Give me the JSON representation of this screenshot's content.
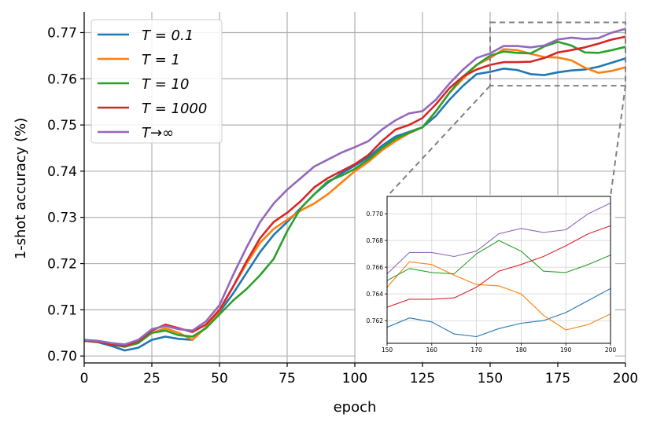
{
  "chart_data": {
    "type": "line",
    "xlabel": "epoch",
    "ylabel": "1-shot accuracy (%)",
    "xlim": [
      0,
      200
    ],
    "ylim": [
      0.6985,
      0.7745
    ],
    "xticks": [
      0,
      25,
      50,
      75,
      100,
      125,
      150,
      175,
      200
    ],
    "xtick_labels": [
      "0",
      "25",
      "50",
      "75",
      "100",
      "125",
      "150",
      "175",
      "200"
    ],
    "yticks": [
      0.7,
      0.71,
      0.72,
      0.73,
      0.74,
      0.75,
      0.76,
      0.77
    ],
    "ytick_labels": [
      "0.70",
      "0.71",
      "0.72",
      "0.73",
      "0.74",
      "0.75",
      "0.76",
      "0.77"
    ],
    "grid": true,
    "legend_position": "top-left",
    "x": [
      0,
      5,
      10,
      15,
      20,
      25,
      30,
      35,
      40,
      45,
      50,
      55,
      60,
      65,
      70,
      75,
      80,
      85,
      90,
      95,
      100,
      105,
      110,
      115,
      120,
      125,
      130,
      135,
      140,
      145,
      150,
      155,
      160,
      165,
      170,
      175,
      180,
      185,
      190,
      195,
      200
    ],
    "series": [
      {
        "name": "T = 0.1",
        "color": "#1f77b4",
        "values": [
          0.7033,
          0.703,
          0.7022,
          0.7012,
          0.7018,
          0.7035,
          0.7042,
          0.7037,
          0.7035,
          0.7062,
          0.7095,
          0.7135,
          0.718,
          0.7225,
          0.7262,
          0.729,
          0.732,
          0.735,
          0.7375,
          0.7395,
          0.7412,
          0.743,
          0.7455,
          0.7475,
          0.7485,
          0.7495,
          0.752,
          0.7555,
          0.7585,
          0.761,
          0.7615,
          0.7622,
          0.7619,
          0.761,
          0.7608,
          0.7614,
          0.7618,
          0.762,
          0.7626,
          0.7635,
          0.7644
        ]
      },
      {
        "name": "T = 1",
        "color": "#ff7f0e",
        "values": [
          0.7033,
          0.7031,
          0.7025,
          0.7022,
          0.703,
          0.705,
          0.706,
          0.705,
          0.7035,
          0.7062,
          0.7098,
          0.715,
          0.72,
          0.7245,
          0.7275,
          0.7295,
          0.7315,
          0.733,
          0.735,
          0.7375,
          0.74,
          0.742,
          0.7445,
          0.7465,
          0.7482,
          0.7495,
          0.753,
          0.757,
          0.76,
          0.763,
          0.7645,
          0.7664,
          0.7662,
          0.7654,
          0.7647,
          0.7646,
          0.764,
          0.7624,
          0.7613,
          0.7617,
          0.7625
        ]
      },
      {
        "name": "T = 10",
        "color": "#2ca02c",
        "values": [
          0.7033,
          0.7031,
          0.7025,
          0.702,
          0.7028,
          0.705,
          0.7055,
          0.7045,
          0.7042,
          0.706,
          0.709,
          0.712,
          0.7145,
          0.7175,
          0.721,
          0.727,
          0.732,
          0.735,
          0.7378,
          0.739,
          0.7405,
          0.7425,
          0.745,
          0.747,
          0.7483,
          0.7495,
          0.753,
          0.757,
          0.7605,
          0.763,
          0.765,
          0.7659,
          0.7656,
          0.7655,
          0.767,
          0.768,
          0.7672,
          0.7657,
          0.7656,
          0.7662,
          0.7669
        ]
      },
      {
        "name": "T = 1000",
        "color": "#d62728",
        "values": [
          0.7033,
          0.7031,
          0.7025,
          0.7022,
          0.7032,
          0.7055,
          0.7068,
          0.706,
          0.7052,
          0.7068,
          0.71,
          0.715,
          0.7205,
          0.7255,
          0.729,
          0.731,
          0.7335,
          0.7365,
          0.7385,
          0.74,
          0.7415,
          0.7435,
          0.7465,
          0.749,
          0.75,
          0.7515,
          0.7545,
          0.758,
          0.7605,
          0.762,
          0.763,
          0.7636,
          0.7636,
          0.7637,
          0.7645,
          0.7657,
          0.7662,
          0.7668,
          0.7676,
          0.7685,
          0.7691
        ]
      },
      {
        "name": "T→∞",
        "color": "#9467bd",
        "values": [
          0.7035,
          0.7033,
          0.7028,
          0.7025,
          0.7035,
          0.7058,
          0.7065,
          0.7058,
          0.7055,
          0.7075,
          0.711,
          0.7175,
          0.7235,
          0.729,
          0.733,
          0.736,
          0.7385,
          0.741,
          0.7425,
          0.744,
          0.7452,
          0.7465,
          0.749,
          0.751,
          0.7525,
          0.753,
          0.7555,
          0.759,
          0.762,
          0.7645,
          0.7655,
          0.7671,
          0.7671,
          0.7668,
          0.7672,
          0.7685,
          0.7689,
          0.7686,
          0.7688,
          0.77,
          0.7708
        ]
      }
    ],
    "inset": {
      "xlim": [
        150,
        200
      ],
      "ylim": [
        0.7603,
        0.7713
      ],
      "xticks": [
        150,
        160,
        170,
        180,
        190,
        200
      ],
      "xtick_labels": [
        "150",
        "160",
        "170",
        "180",
        "190",
        "200"
      ],
      "yticks": [
        0.762,
        0.764,
        0.766,
        0.768,
        0.77
      ],
      "ytick_labels": [
        "0.762",
        "0.764",
        "0.766",
        "0.768",
        "0.770"
      ],
      "zoom_box": {
        "x": [
          150,
          200
        ],
        "y": [
          0.7585,
          0.7722
        ]
      }
    }
  }
}
